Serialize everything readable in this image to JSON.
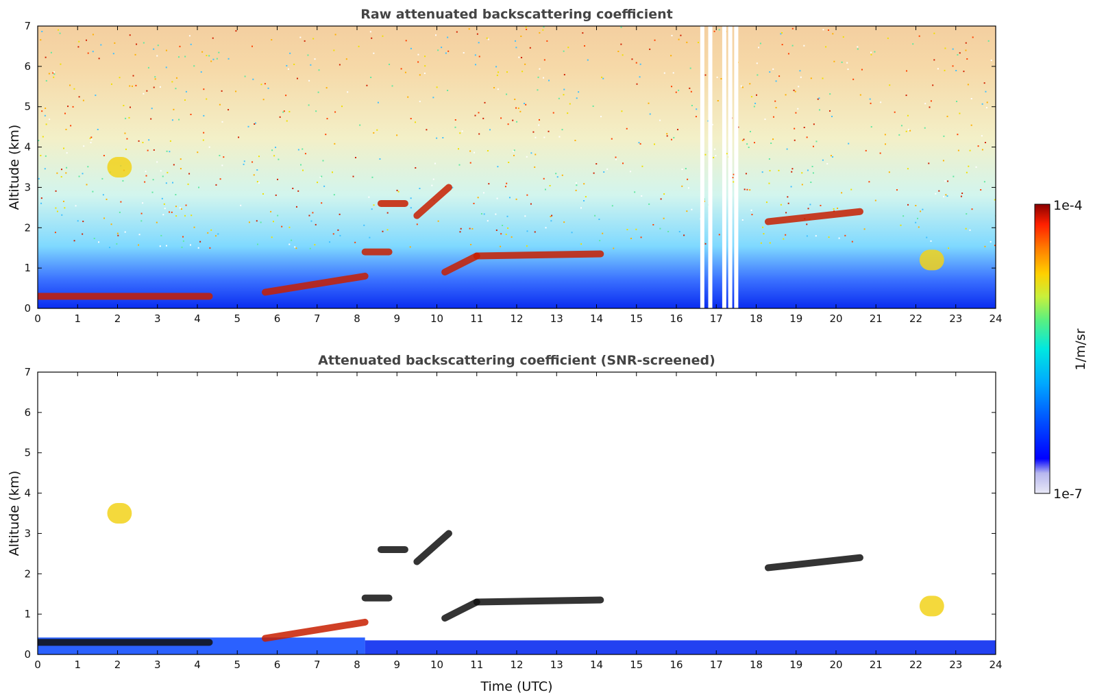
{
  "chart_data": [
    {
      "type": "heatmap",
      "title": "Raw attenuated backscattering coefficient",
      "xlabel": "",
      "ylabel": "Altitude (km)",
      "xlim": [
        0,
        24
      ],
      "ylim": [
        0,
        7
      ],
      "xticks": [
        "0",
        "1",
        "2",
        "3",
        "4",
        "5",
        "6",
        "7",
        "8",
        "9",
        "10",
        "11",
        "12",
        "13",
        "14",
        "15",
        "16",
        "17",
        "18",
        "19",
        "20",
        "21",
        "22",
        "23",
        "24"
      ],
      "yticks": [
        "0",
        "1",
        "2",
        "3",
        "4",
        "5",
        "6",
        "7"
      ],
      "background_level": {
        "near_surface": "blue",
        "upper_altitude": "noisy yellow-red"
      },
      "layers": [
        {
          "t": 0.0,
          "t_end": 4.3,
          "alt_km": 0.3,
          "level": "high"
        },
        {
          "t": 5.7,
          "t_end": 8.2,
          "alt_km": 0.4,
          "alt_end_km": 0.8,
          "level": "high"
        },
        {
          "t": 8.2,
          "t_end": 8.8,
          "alt_km": 1.4,
          "level": "high"
        },
        {
          "t": 8.6,
          "t_end": 9.2,
          "alt_km": 2.6,
          "level": "high"
        },
        {
          "t": 9.5,
          "t_end": 10.3,
          "alt_km": 2.3,
          "alt_end_km": 3.0,
          "level": "high"
        },
        {
          "t": 10.2,
          "t_end": 11.0,
          "alt_km": 0.9,
          "alt_end_km": 1.3,
          "level": "high"
        },
        {
          "t": 11.0,
          "t_end": 14.1,
          "alt_km": 1.3,
          "alt_end_km": 1.35,
          "level": "high"
        },
        {
          "t": 18.3,
          "t_end": 20.6,
          "alt_km": 2.15,
          "alt_end_km": 2.4,
          "level": "high"
        },
        {
          "t": 2.0,
          "t_end": 2.1,
          "alt_km": 3.5,
          "level": "medium"
        },
        {
          "t": 22.35,
          "t_end": 22.45,
          "alt_km": 1.2,
          "level": "medium"
        }
      ],
      "data_gaps_utc": [
        16.65,
        16.85,
        17.2,
        17.35,
        17.5
      ]
    },
    {
      "type": "heatmap",
      "title": "Attenuated backscattering coefficient (SNR-screened)",
      "xlabel": "Time (UTC)",
      "ylabel": "Altitude (km)",
      "xlim": [
        0,
        24
      ],
      "ylim": [
        0,
        7
      ],
      "xticks": [
        "0",
        "1",
        "2",
        "3",
        "4",
        "5",
        "6",
        "7",
        "8",
        "9",
        "10",
        "11",
        "12",
        "13",
        "14",
        "15",
        "16",
        "17",
        "18",
        "19",
        "20",
        "21",
        "22",
        "23",
        "24"
      ],
      "yticks": [
        "0",
        "1",
        "2",
        "3",
        "4",
        "5",
        "6",
        "7"
      ],
      "layers": [
        {
          "t": 0.0,
          "t_end": 4.3,
          "alt_km": 0.3,
          "level": "saturated"
        },
        {
          "t": 5.7,
          "t_end": 8.2,
          "alt_km": 0.4,
          "alt_end_km": 0.8,
          "level": "high"
        },
        {
          "t": 8.2,
          "t_end": 8.8,
          "alt_km": 1.4,
          "level": "saturated"
        },
        {
          "t": 8.6,
          "t_end": 9.2,
          "alt_km": 2.6,
          "level": "saturated"
        },
        {
          "t": 9.5,
          "t_end": 10.3,
          "alt_km": 2.3,
          "alt_end_km": 3.0,
          "level": "saturated"
        },
        {
          "t": 10.2,
          "t_end": 11.0,
          "alt_km": 0.9,
          "alt_end_km": 1.3,
          "level": "saturated"
        },
        {
          "t": 11.0,
          "t_end": 14.1,
          "alt_km": 1.3,
          "alt_end_km": 1.35,
          "level": "saturated"
        },
        {
          "t": 18.3,
          "t_end": 20.6,
          "alt_km": 2.15,
          "alt_end_km": 2.4,
          "level": "saturated"
        },
        {
          "t": 2.0,
          "t_end": 2.1,
          "alt_km": 3.5,
          "level": "medium"
        },
        {
          "t": 22.35,
          "t_end": 22.45,
          "alt_km": 1.2,
          "level": "medium"
        }
      ]
    }
  ],
  "colorbar": {
    "label": "1/m/sr",
    "max_label": "1e-4",
    "min_label": "1e-7",
    "colormap": "jet",
    "colors": [
      "#e8e8f6",
      "#b7b7ee",
      "#0000ff",
      "#0050ff",
      "#00a8ff",
      "#00e8e0",
      "#5af080",
      "#c8f03c",
      "#ffd000",
      "#ff7a00",
      "#ff2000",
      "#8b0000"
    ]
  }
}
